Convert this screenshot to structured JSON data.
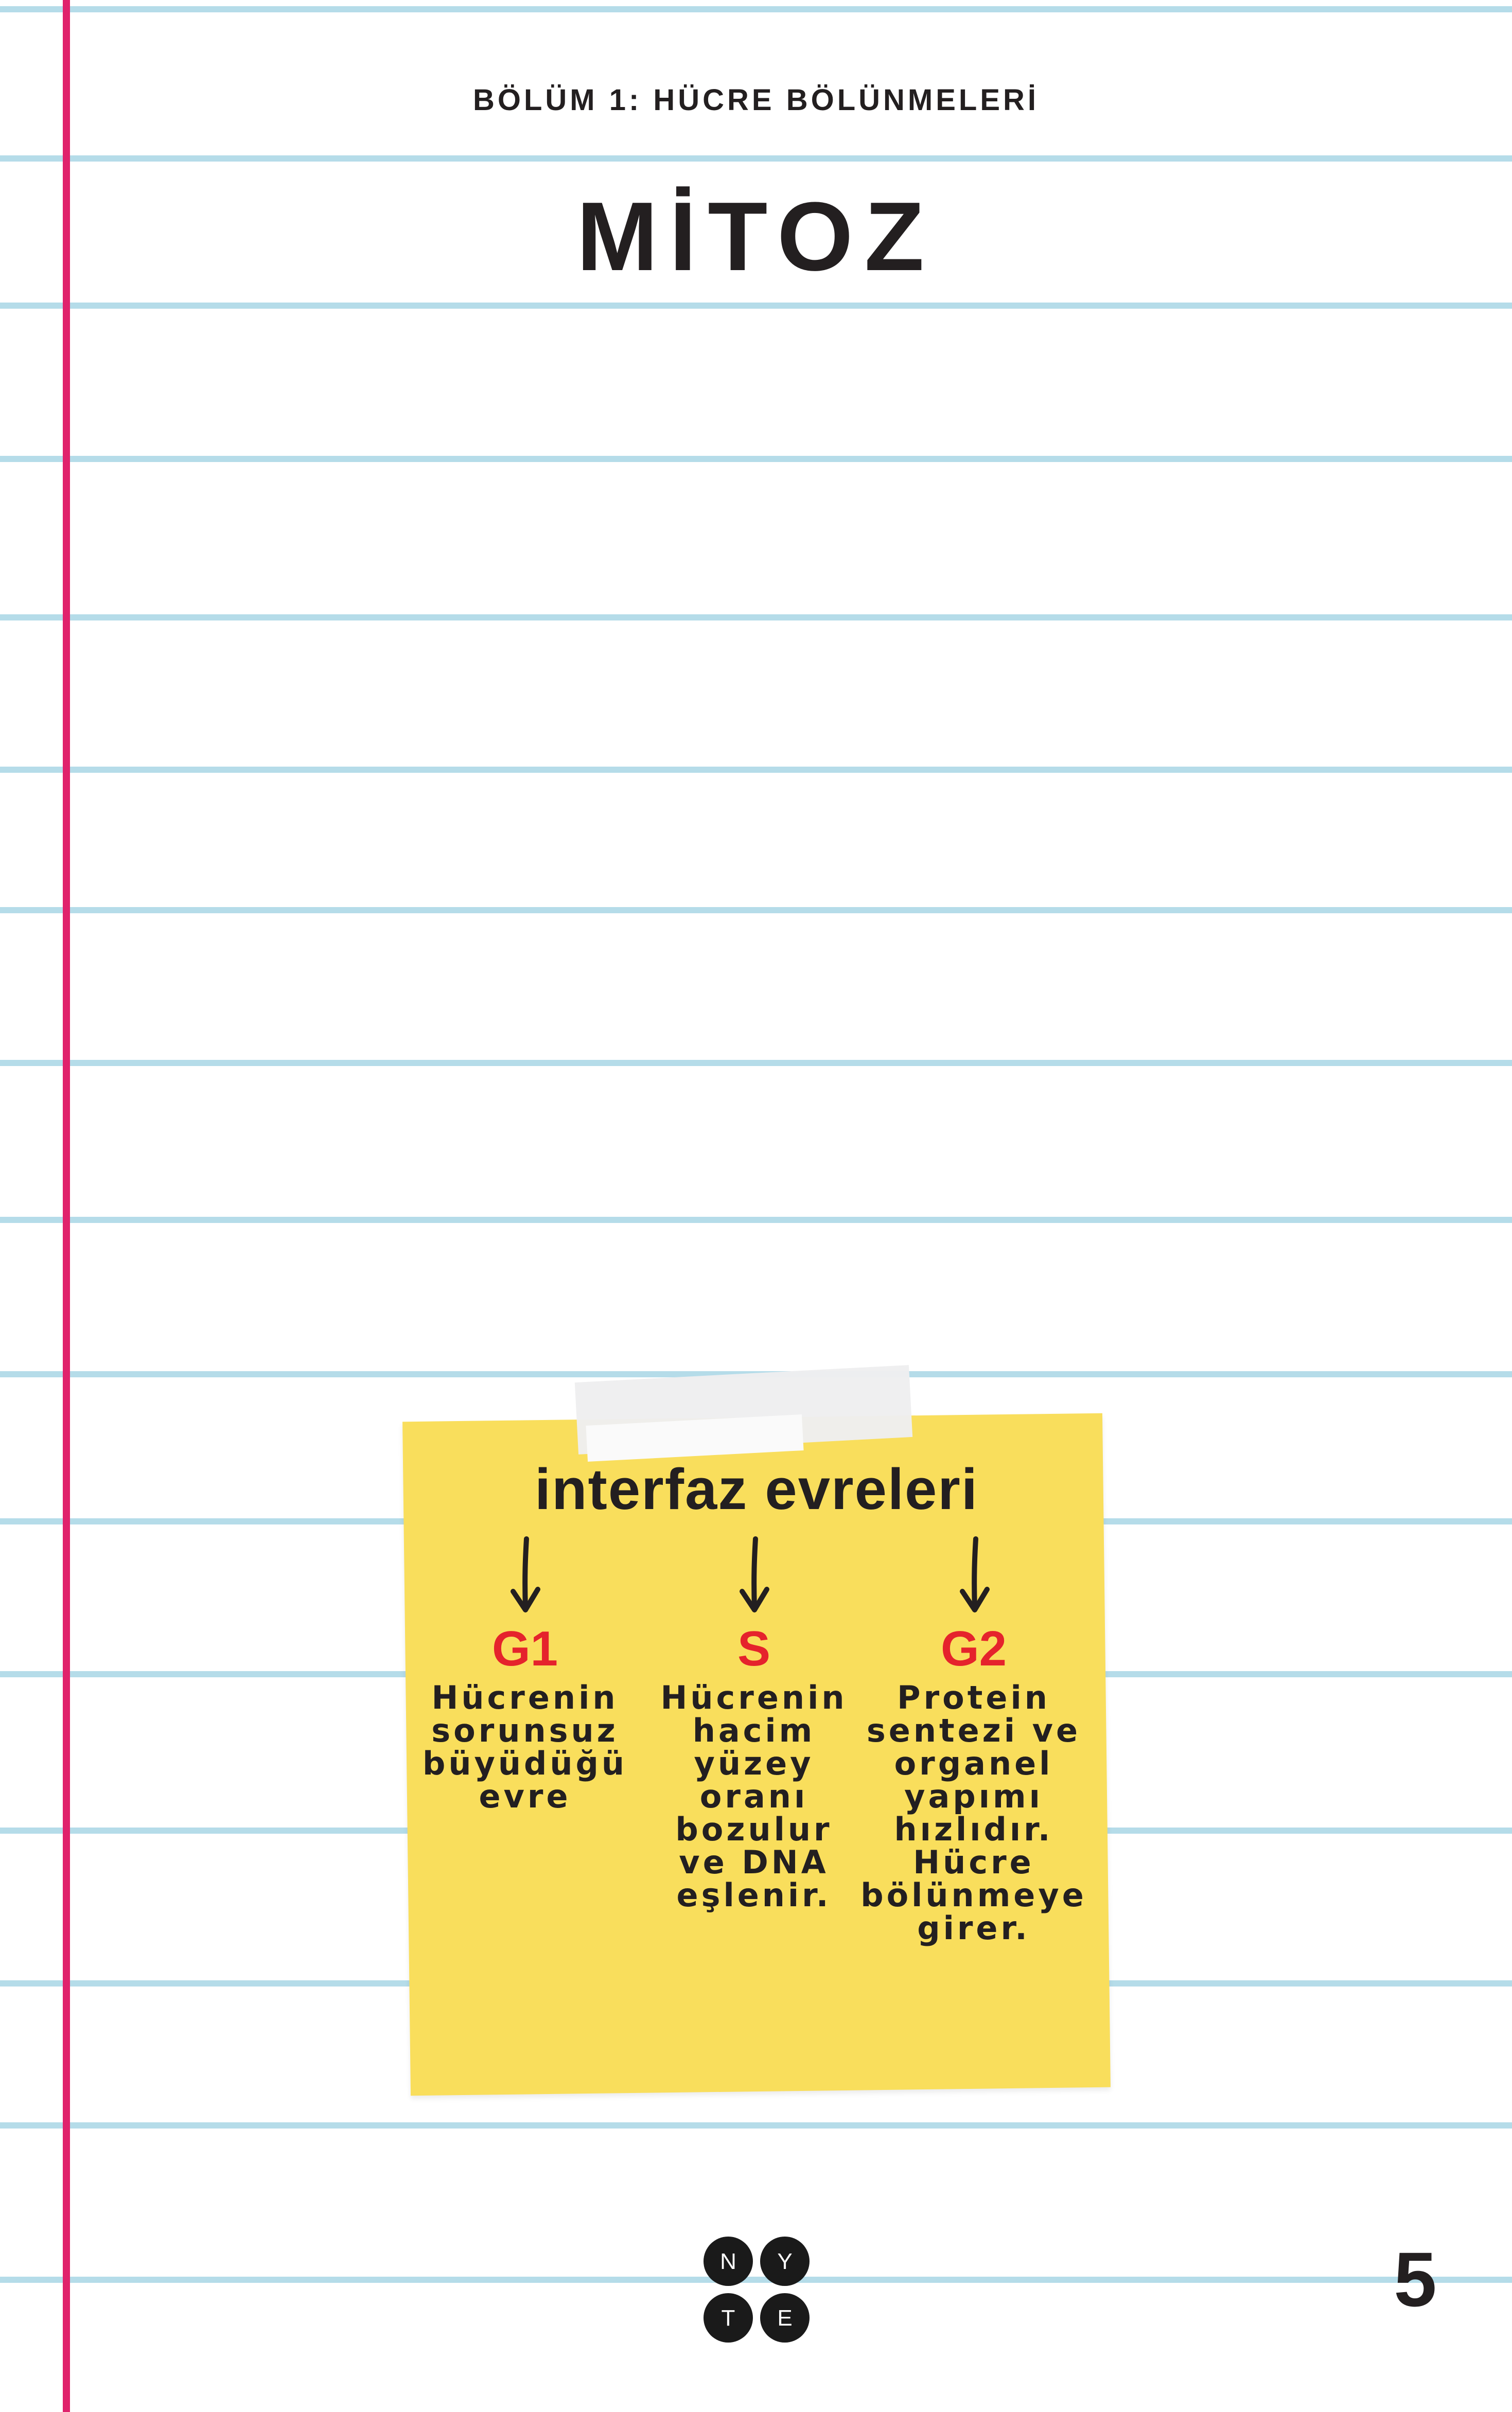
{
  "header": {
    "chapter": "BÖLÜM 1: HÜCRE BÖLÜNMELERİ",
    "title": "MİTOZ"
  },
  "sticky_note": {
    "heading": "interfaz evreleri",
    "phases": [
      {
        "label": "G1",
        "description": "Hücrenin\nsorunsuz\nbüyüdüğü\nevre"
      },
      {
        "label": "S",
        "description": "Hücrenin\nhacim\nyüzey\noranı\nbozulur\nve DNA\neşlenir."
      },
      {
        "label": "G2",
        "description": "Protein\nsentezi ve\norganel\nyapımı\nhızlıdır.\nHücre\nbölünmeye\ngirer."
      }
    ]
  },
  "footer": {
    "logo_letters": [
      "N",
      "Y",
      "T",
      "E"
    ],
    "page_number": "5"
  },
  "colors": {
    "rule_line": "#b5dce9",
    "margin_line": "#e0226c",
    "sticky_note": "#f9de5c",
    "phase_label": "#e5232c",
    "text": "#231f20"
  }
}
